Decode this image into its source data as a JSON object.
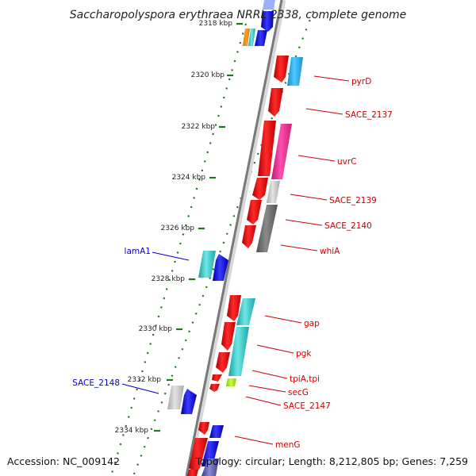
{
  "title": "Saccharopolyspora erythraea NRRL 2338, complete genome",
  "accession": "Accession: NC_009142",
  "topology": "Topology: circular; Length: 8,212,805 bp; Genes: 7,259",
  "ticks": [
    "2318 kbp",
    "2320 kbp",
    "2322 kbp",
    "2324 kbp",
    "2326 kbp",
    "2328 kbp",
    "2330 kbp",
    "2332 kbp",
    "2334 kbp"
  ],
  "colors": {
    "red": "#ff1a1a",
    "cyan": "#2ec8c8",
    "blue": "#1a1aff",
    "magenta": "#f0359a",
    "dark_grey": "#707070",
    "light_grey": "#c8c8c8",
    "green_tick": "#1a7a1a",
    "label_red": "#cc0000",
    "label_blue": "#0000cc"
  },
  "labels_right": [
    {
      "text": "pyrD"
    },
    {
      "text": "SACE_2137"
    },
    {
      "text": "uvrC"
    },
    {
      "text": "SACE_2139"
    },
    {
      "text": "SACE_2140"
    },
    {
      "text": "whiA"
    },
    {
      "text": "gap"
    },
    {
      "text": "pgk"
    },
    {
      "text": "tpiA,tpi"
    },
    {
      "text": "secG"
    },
    {
      "text": "SACE_2147"
    },
    {
      "text": "menG"
    }
  ],
  "labels_left": [
    {
      "text": "lamA1"
    },
    {
      "text": "SACE_2148"
    }
  ]
}
